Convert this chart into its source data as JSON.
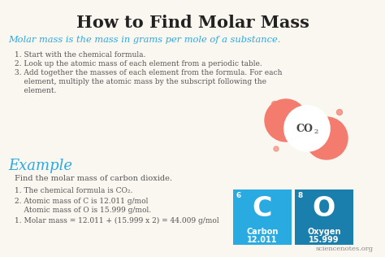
{
  "bg_color": "#faf6f0",
  "title": "How to Find Molar Mass",
  "title_color": "#222222",
  "subtitle": "Molar mass is the mass in grams per mole of a substance.",
  "subtitle_color": "#29abe2",
  "steps": [
    "1. Start with the chemical formula.",
    "2. Look up the atomic mass of each element from a periodic table.",
    "3. Add together the masses of each element from the formula. For each\n    element, multiply the atomic mass by the subscript following the\n    element."
  ],
  "steps_color": "#555555",
  "example_label": "Example",
  "example_color": "#29abe2",
  "example_text": "Find the molar mass of carbon dioxide.",
  "example_text_color": "#555555",
  "bullet1": "1. The chemical formula is CO₂.",
  "bullet2a": "2. Atomic mass of C is 12.011 g/mol",
  "bullet2b": "    Atomic mass of O is 15.999 g/mol.",
  "bullet3": "1. Molar mass = 12.011 + (15.999 x 2) = 44.009 g/mol",
  "bullets_color": "#555555",
  "carbon_color": "#29abe2",
  "oxygen_color": "#1a7fad",
  "carbon_num": "6",
  "oxygen_num": "8",
  "carbon_symbol": "C",
  "oxygen_symbol": "O",
  "carbon_name": "Carbon",
  "carbon_mass": "12.011",
  "oxygen_name": "Oxygen",
  "oxygen_mass": "15.999",
  "footer": "sciencenotes.org",
  "footer_color": "#888888"
}
